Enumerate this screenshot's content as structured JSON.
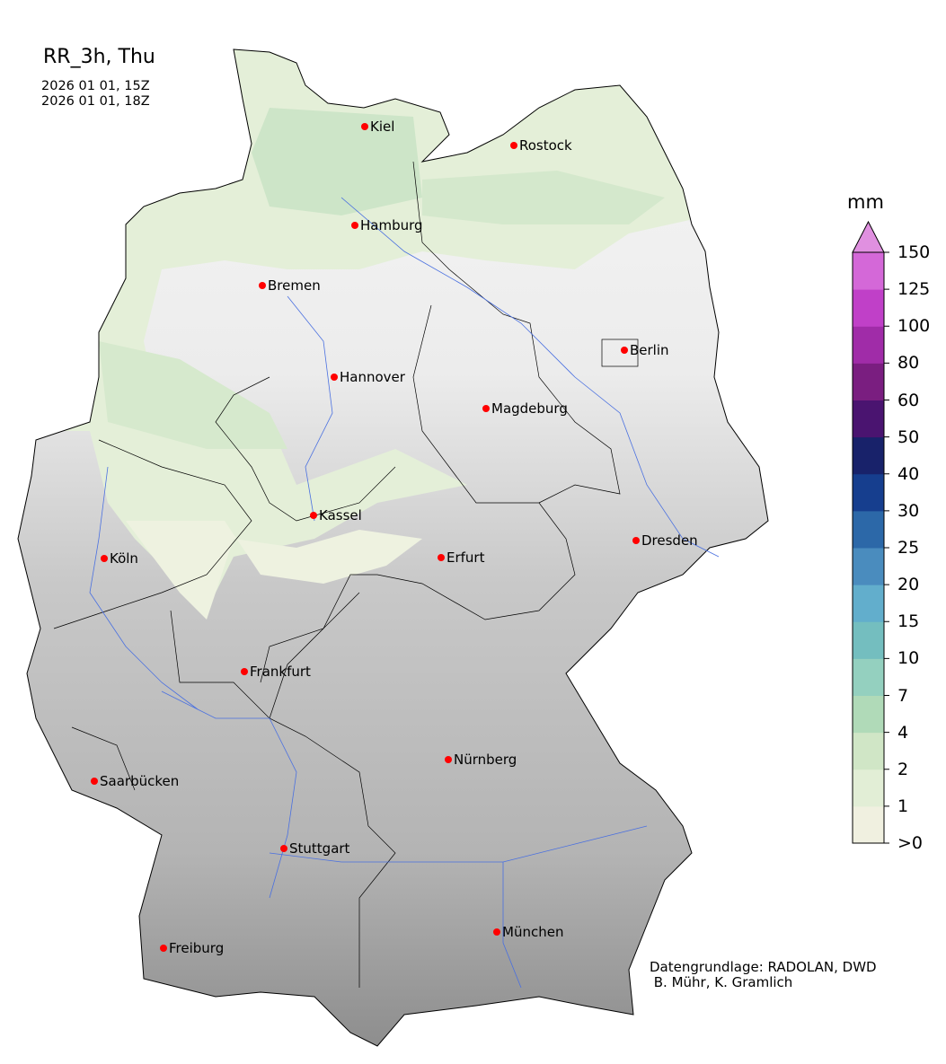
{
  "title": "RR_3h, Thu",
  "valid_times": [
    "2026 01 01, 15Z",
    "2026 01 01, 18Z"
  ],
  "colorbar": {
    "unit": "mm",
    "ticks": [
      ">0",
      "1",
      "2",
      "4",
      "7",
      "10",
      "15",
      "20",
      "25",
      "30",
      "40",
      "50",
      "60",
      "80",
      "100",
      "125",
      "150"
    ],
    "colors": [
      "#f0f0e0",
      "#e2eed6",
      "#d0e6c6",
      "#b0dab8",
      "#94d0bf",
      "#74bebf",
      "#62aecc",
      "#4a8cbe",
      "#2c68a8",
      "#163e8e",
      "#18226a",
      "#4a1470",
      "#7a1e80",
      "#a02ca8",
      "#c040c8",
      "#d468d8"
    ],
    "extend_color": "#e090e0",
    "extend": "max"
  },
  "cities": [
    {
      "name": "Kiel"
    },
    {
      "name": "Rostock"
    },
    {
      "name": "Hamburg"
    },
    {
      "name": "Bremen"
    },
    {
      "name": "Berlin"
    },
    {
      "name": "Hannover"
    },
    {
      "name": "Magdeburg"
    },
    {
      "name": "Kassel"
    },
    {
      "name": "Köln"
    },
    {
      "name": "Erfurt"
    },
    {
      "name": "Dresden"
    },
    {
      "name": "Frankfurt"
    },
    {
      "name": "Nürnberg"
    },
    {
      "name": "Saarbücken"
    },
    {
      "name": "Stuttgart"
    },
    {
      "name": "Freiburg"
    },
    {
      "name": "München"
    }
  ],
  "city_marker_color": "#ff0000",
  "credit": [
    "Datengrundlage: RADOLAN, DWD",
    " B. Mühr, K. Gramlich"
  ]
}
